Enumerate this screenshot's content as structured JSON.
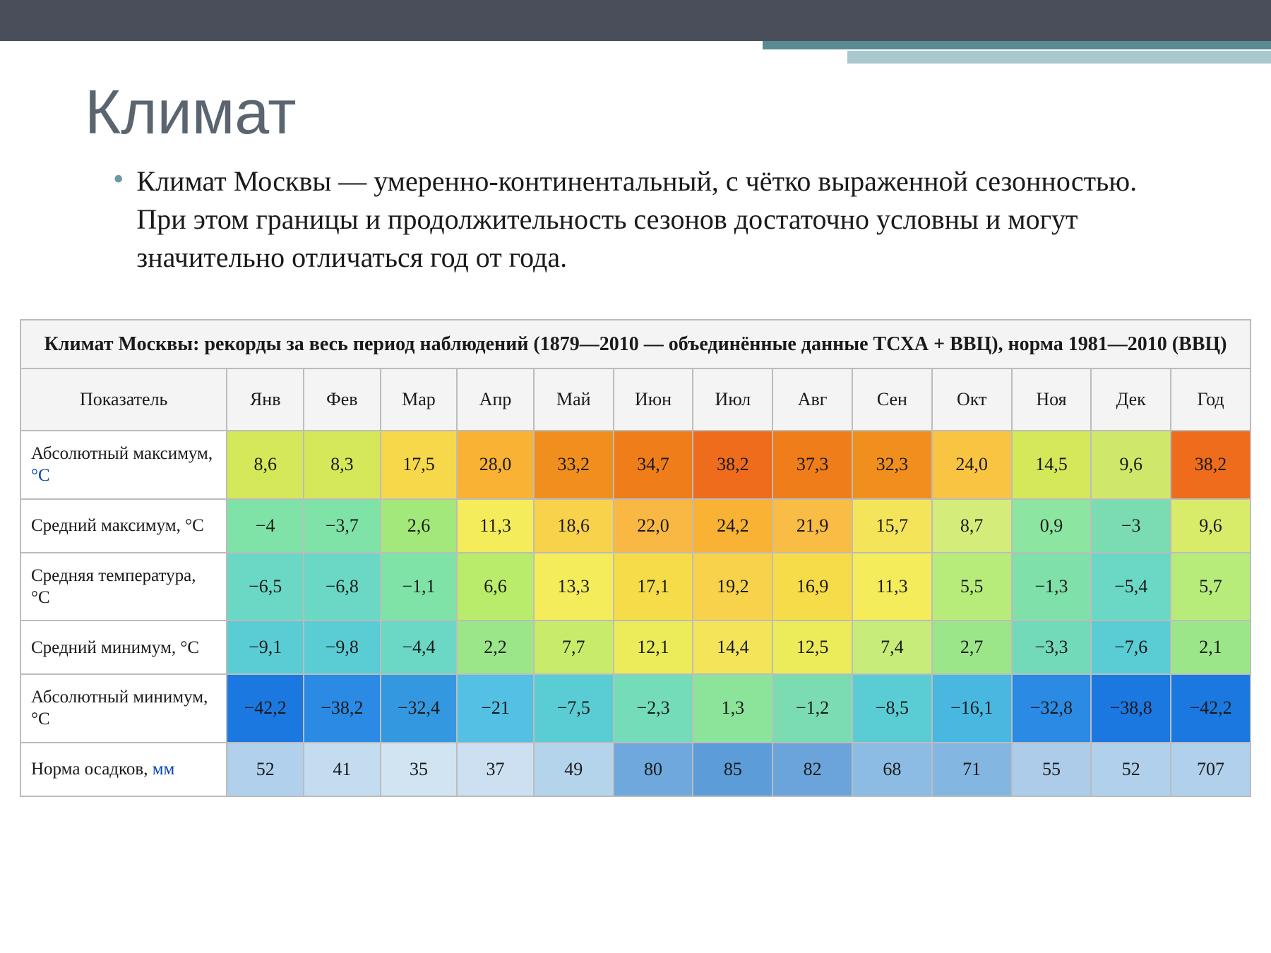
{
  "slide": {
    "title": "Климат",
    "bullet_symbol": "•",
    "description": "Климат Москвы — умеренно-континентальный, с чётко выраженной сезонностью. При этом границы и продолжительность сезонов достаточно условны и могут значительно отличаться год от года."
  },
  "table": {
    "caption": "Климат Москвы: рекорды за весь период наблюдений (1879—2010 — объединённые данные ТСХА + ВВЦ), норма 1981—2010 (ВВЦ)",
    "columns": [
      "Показатель",
      "Янв",
      "Фев",
      "Мар",
      "Апр",
      "Май",
      "Июн",
      "Июл",
      "Авг",
      "Сен",
      "Окт",
      "Ноя",
      "Дек",
      "Год"
    ],
    "col_widths": [
      "280px",
      "104px",
      "104px",
      "104px",
      "104px",
      "108px",
      "108px",
      "108px",
      "108px",
      "108px",
      "108px",
      "108px",
      "108px",
      "108px"
    ],
    "rows": [
      {
        "label_html": "Абсолютный максимум, <span class=\"unit-c\">°C</span>",
        "values": [
          "8,6",
          "8,3",
          "17,5",
          "28,0",
          "33,2",
          "34,7",
          "38,2",
          "37,3",
          "32,3",
          "24,0",
          "14,5",
          "9,6",
          "38,2"
        ],
        "colors": [
          "#d4e85a",
          "#d4e85a",
          "#f7d84a",
          "#f9b233",
          "#f18f1e",
          "#ef7d1a",
          "#ee6c1c",
          "#ef7d1a",
          "#f18f1e",
          "#f9c441",
          "#d4e85a",
          "#cfe86a",
          "#ee6c1c"
        ]
      },
      {
        "label_html": "Средний максимум, °C",
        "values": [
          "−4",
          "−3,7",
          "2,6",
          "11,3",
          "18,6",
          "22,0",
          "24,2",
          "21,9",
          "15,7",
          "8,7",
          "0,9",
          "−3",
          "9,6"
        ],
        "colors": [
          "#7fe3a8",
          "#7fe3a8",
          "#a3e87a",
          "#f4ec5a",
          "#f7d24a",
          "#f9b844",
          "#f9b233",
          "#f9bc44",
          "#f4e45a",
          "#d4ec7a",
          "#8ce5a0",
          "#7adcb0",
          "#d8ec6a"
        ]
      },
      {
        "label_html": "Средняя температура, °C",
        "values": [
          "−6,5",
          "−6,8",
          "−1,1",
          "6,6",
          "13,3",
          "17,1",
          "19,2",
          "16,9",
          "11,3",
          "5,5",
          "−1,3",
          "−5,4",
          "5,7"
        ],
        "colors": [
          "#6ad8c4",
          "#6ad8c4",
          "#7fe3a8",
          "#b8ec6a",
          "#f4ec5a",
          "#f7dc4a",
          "#f7d24a",
          "#f7dc4a",
          "#f4ec5a",
          "#b8ec7a",
          "#7fe0aa",
          "#6ad8c4",
          "#b8ec7a"
        ]
      },
      {
        "label_html": "Средний минимум, °C",
        "values": [
          "−9,1",
          "−9,8",
          "−4,4",
          "2,2",
          "7,7",
          "12,1",
          "14,4",
          "12,5",
          "7,4",
          "2,7",
          "−3,3",
          "−7,6",
          "2,1"
        ],
        "colors": [
          "#5accd4",
          "#5accd4",
          "#6ad8c4",
          "#9ce68a",
          "#c8ec6a",
          "#ecec5a",
          "#f4e45a",
          "#ecec5a",
          "#c8ec7a",
          "#9ce68a",
          "#72dab8",
          "#5accd4",
          "#9ce68a"
        ]
      },
      {
        "label_html": "Абсолютный минимум, °C",
        "values": [
          "−42,2",
          "−38,2",
          "−32,4",
          "−21",
          "−7,5",
          "−2,3",
          "1,3",
          "−1,2",
          "−8,5",
          "−16,1",
          "−32,8",
          "−38,8",
          "−42,2"
        ],
        "colors": [
          "#1a78e0",
          "#2a8ae4",
          "#3498e0",
          "#54c0e4",
          "#5accd4",
          "#74dcb8",
          "#8ce49a",
          "#7adcb0",
          "#5accd4",
          "#48b8e0",
          "#2a8ae4",
          "#1a78e0",
          "#1a78e0"
        ]
      },
      {
        "label_html": "Норма осадков, <span class=\"unit-mm\">мм</span>",
        "values": [
          "52",
          "41",
          "35",
          "37",
          "49",
          "80",
          "85",
          "82",
          "68",
          "71",
          "55",
          "52",
          "707"
        ],
        "colors": [
          "#b0d0ec",
          "#c4dcf0",
          "#d0e4f2",
          "#cce0f2",
          "#b4d4ec",
          "#6ea8dc",
          "#5c9cd8",
          "#6aa4da",
          "#8cbce4",
          "#84b6e2",
          "#acccea",
          "#b0d0ec",
          "#b0d0ec"
        ]
      }
    ]
  },
  "theme": {
    "top_bar_color": "#4a4e5a",
    "accent_dark": "#5a8a92",
    "accent_light": "#a8c8ce",
    "title_color": "#5a6570",
    "bullet_color": "#6a9aa2",
    "border_color": "#bcbcbc",
    "header_bg": "#f4f4f4"
  }
}
